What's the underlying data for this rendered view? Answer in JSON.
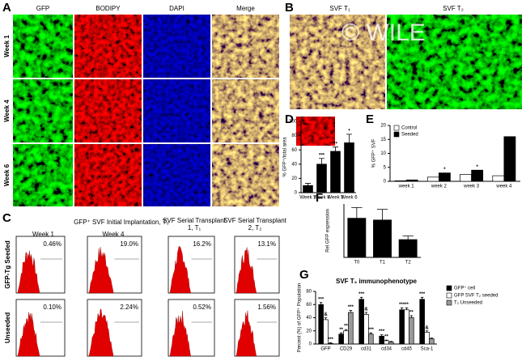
{
  "panels": {
    "a": {
      "label": "A",
      "columns": [
        "GFP",
        "BODIPY",
        "DAPI",
        "Merge"
      ],
      "rows": [
        "Week 1",
        "Week 4",
        "Week 6"
      ]
    },
    "b": {
      "label": "B",
      "images": [
        "SVF T₁",
        "SVF T₂"
      ],
      "watermark": "© WILE"
    },
    "c": {
      "label": "C",
      "headers": [
        "GFP⁺ SVF Initial Implantation, T₀",
        "Week 1",
        "Week 4",
        "SVF Serial Transplant 1, T₁",
        "SVF Serial Transplant 2, T₂"
      ],
      "rows": [
        {
          "label": "GFP-Tg Seeded",
          "values": [
            "0.46%",
            "19.0%",
            "16.2%",
            "13.1%"
          ]
        },
        {
          "label": "Unseeded",
          "values": [
            "0.10%",
            "2.24%",
            "0.52%",
            "1.56%"
          ]
        }
      ]
    },
    "d": {
      "label": "D"
    },
    "e": {
      "label": "E"
    },
    "f": {
      "label": "F"
    },
    "g": {
      "label": "G"
    }
  },
  "chart_data": [
    {
      "type": "bar",
      "ylabel": "% GFP⁺/total area",
      "categories": [
        "Week 1",
        "Week 4",
        "Week 5",
        "Week 6"
      ],
      "series": [
        {
          "color": "#000000",
          "values": [
            10,
            40,
            58,
            70
          ],
          "errors": [
            3,
            8,
            6,
            12
          ],
          "sig": [
            null,
            "***",
            "**",
            "*"
          ]
        }
      ],
      "ylim": [
        0,
        100
      ],
      "yticks": [
        0,
        20,
        40,
        60,
        80,
        100
      ]
    },
    {
      "type": "bar",
      "ylabel": "% GFP⁺ SVF",
      "categories": [
        "week 1",
        "week 2",
        "week 3",
        "week 4"
      ],
      "series": [
        {
          "name": "Control",
          "color": "#ffffff",
          "values": [
            0.2,
            1.5,
            2.5,
            2
          ]
        },
        {
          "name": "Seeded",
          "color": "#000000",
          "values": [
            0.5,
            3,
            4,
            16
          ],
          "sig": [
            null,
            "*",
            "*",
            null
          ]
        }
      ],
      "ylim": [
        0,
        20
      ],
      "yticks": [
        0,
        5,
        10,
        15,
        20
      ]
    },
    {
      "type": "bar",
      "ylabel": "Rel GFP expression",
      "categories": [
        "T0",
        "T1",
        "T2"
      ],
      "series": [
        {
          "color": "#000000",
          "values": [
            1.1,
            1.05,
            0.5
          ],
          "errors": [
            0.3,
            0.3,
            0.1
          ]
        }
      ],
      "ylim": [
        0,
        1.5
      ]
    },
    {
      "type": "bar",
      "title": "SVF T₂ immunophenotype",
      "ylabel": "Percent (%) of GFP⁺ Population",
      "categories": [
        "GFP",
        "CD29",
        "cd31",
        "cd34",
        "cd45",
        "Sca-1"
      ],
      "series": [
        {
          "name": "GFP⁺ cell",
          "color": "#000000",
          "values": [
            60,
            15,
            68,
            12,
            52,
            68
          ],
          "errors": [
            3,
            2,
            3,
            2,
            3,
            3
          ],
          "sig": [
            "***",
            "**",
            "***",
            "***",
            "***",
            "***"
          ]
        },
        {
          "name": "GFP SVF T₂ seeded",
          "color": "#ffffff",
          "values": [
            37,
            20,
            45,
            5,
            52,
            18
          ],
          "errors": [
            3,
            2,
            3,
            1,
            3,
            2
          ],
          "sig": [
            "&",
            "**",
            "&",
            "**",
            "**",
            "&"
          ]
        },
        {
          "name": "T₂ Unseeded",
          "color": "#999999",
          "values": [
            1,
            48,
            15,
            3,
            40,
            8
          ],
          "errors": [
            1,
            3,
            2,
            1,
            3,
            1
          ],
          "sig": [
            "***",
            "***",
            "***",
            null,
            "**",
            null
          ]
        }
      ],
      "ylim": [
        0,
        80
      ],
      "yticks": [
        0,
        20,
        40,
        60,
        80
      ]
    }
  ]
}
